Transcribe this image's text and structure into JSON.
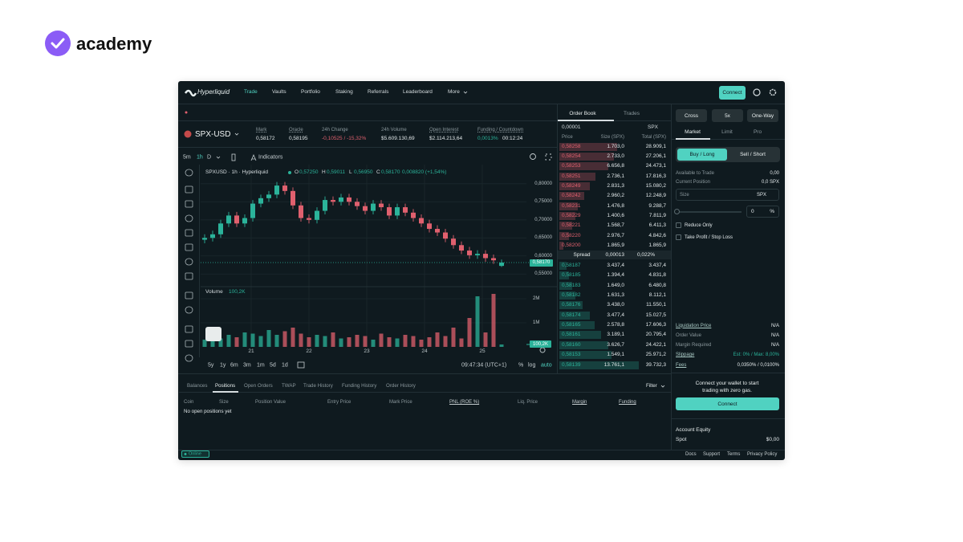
{
  "logo": {
    "text": "academy"
  },
  "nav": {
    "brand": "Hyperliquid",
    "items": [
      "Trade",
      "Vaults",
      "Portfolio",
      "Staking",
      "Referrals",
      "Leaderboard",
      "More"
    ],
    "connect": "Connect"
  },
  "market": {
    "symbol": "SPX-USD",
    "stats": [
      {
        "label": "Mark",
        "value": "0,58172"
      },
      {
        "label": "Oracle",
        "value": "0,58195"
      },
      {
        "label": "24h Change",
        "value": "-0,10525 / -15,32%"
      },
      {
        "label": "24h Volume",
        "value": "$5.609.130,69"
      },
      {
        "label": "Open Interest",
        "value": "$2.114.213,64"
      },
      {
        "label": "Funding / Countdown",
        "value": "0,0013%",
        "extra": "00:12:24"
      }
    ]
  },
  "toolbar": {
    "intervals": [
      "5m",
      "1h",
      "D"
    ],
    "indicators": "Indicators"
  },
  "chart": {
    "legend": "SPXUSD · 1h · Hyperliquid",
    "ohlc": [
      {
        "key": "O",
        "value": "0,57250"
      },
      {
        "key": "H",
        "value": "0,59011"
      },
      {
        "key": "L",
        "value": "0,56950"
      },
      {
        "key": "C",
        "value": "0,58170"
      }
    ],
    "change": "0,008820 (+1,54%)",
    "volume_label": "Volume",
    "ylim": [
      0.515,
      0.853
    ],
    "yticks": [
      {
        "value": 0.8,
        "label": "0,80000"
      },
      {
        "value": 0.75,
        "label": "0,75000"
      },
      {
        "value": 0.7,
        "label": "0,70000"
      },
      {
        "value": 0.65,
        "label": "0,65000"
      },
      {
        "value": 0.6,
        "label": "0,60000"
      },
      {
        "value": 0.55,
        "label": "0,55000"
      }
    ],
    "vlim": [
      0,
      2400000
    ],
    "vticks": [
      {
        "value": 2000000,
        "label": "2M"
      },
      {
        "value": 1000000,
        "label": "1M"
      }
    ],
    "xticks": [
      "21",
      "22",
      "23",
      "24",
      "25"
    ],
    "last_price": {
      "value": 0.5817,
      "label": "0,58170"
    },
    "last_volume": {
      "value": 100200,
      "label": "100,2K"
    },
    "candles": {
      "open": [
        0.645,
        0.65,
        0.66,
        0.69,
        0.712,
        0.69,
        0.705,
        0.745,
        0.76,
        0.77,
        0.795,
        0.78,
        0.74,
        0.705,
        0.7,
        0.725,
        0.755,
        0.75,
        0.762,
        0.75,
        0.738,
        0.725,
        0.745,
        0.735,
        0.712,
        0.735,
        0.72,
        0.705,
        0.69,
        0.675,
        0.665,
        0.648,
        0.63,
        0.615,
        0.602,
        0.606,
        0.594,
        0.5725
      ],
      "high": [
        0.66,
        0.67,
        0.7,
        0.722,
        0.722,
        0.715,
        0.755,
        0.77,
        0.78,
        0.805,
        0.805,
        0.79,
        0.75,
        0.715,
        0.735,
        0.765,
        0.765,
        0.772,
        0.772,
        0.76,
        0.748,
        0.755,
        0.755,
        0.745,
        0.745,
        0.745,
        0.73,
        0.715,
        0.7,
        0.685,
        0.675,
        0.658,
        0.64,
        0.625,
        0.616,
        0.616,
        0.604,
        0.59011
      ],
      "low": [
        0.635,
        0.64,
        0.65,
        0.68,
        0.68,
        0.68,
        0.695,
        0.735,
        0.75,
        0.76,
        0.77,
        0.73,
        0.695,
        0.69,
        0.69,
        0.715,
        0.74,
        0.74,
        0.74,
        0.728,
        0.715,
        0.715,
        0.725,
        0.702,
        0.702,
        0.71,
        0.695,
        0.68,
        0.665,
        0.655,
        0.638,
        0.62,
        0.605,
        0.592,
        0.592,
        0.584,
        0.578,
        0.5695
      ],
      "close": [
        0.65,
        0.66,
        0.69,
        0.712,
        0.69,
        0.705,
        0.745,
        0.76,
        0.77,
        0.795,
        0.78,
        0.74,
        0.705,
        0.7,
        0.725,
        0.755,
        0.75,
        0.762,
        0.75,
        0.738,
        0.725,
        0.745,
        0.735,
        0.712,
        0.735,
        0.72,
        0.705,
        0.69,
        0.675,
        0.665,
        0.648,
        0.63,
        0.615,
        0.602,
        0.606,
        0.594,
        0.588,
        0.5817
      ],
      "volume": [
        300000,
        450000,
        350000,
        500000,
        400000,
        600000,
        550000,
        450000,
        700000,
        500000,
        650000,
        800000,
        550000,
        400000,
        500000,
        450000,
        600000,
        350000,
        400000,
        500000,
        450000,
        300000,
        550000,
        400000,
        350000,
        500000,
        450000,
        300000,
        400000,
        600000,
        450000,
        800000,
        350000,
        1200000,
        2100000,
        600000,
        2200000,
        100200
      ]
    },
    "ranges": [
      "5y",
      "1y",
      "6m",
      "3m",
      "1m",
      "5d",
      "1d"
    ],
    "clock": "09:47:34 (UTC+1)",
    "options": [
      "%",
      "log",
      "auto"
    ]
  },
  "orderbook": {
    "tabs": [
      "Order Book",
      "Trades"
    ],
    "precision": "0,00001",
    "unit": "SPX",
    "headers": [
      "Price",
      "Size (SPX)",
      "Total (SPX)"
    ],
    "asks": [
      {
        "price": "0,58258",
        "size": "1.703,0",
        "total": {
          "value": 28909.1,
          "label": "28.909,1"
        }
      },
      {
        "price": "0,58254",
        "size": "2.733,0",
        "total": {
          "value": 27206.1,
          "label": "27.206,1"
        }
      },
      {
        "price": "0,58253",
        "size": "6.656,8",
        "total": {
          "value": 24473.1,
          "label": "24.473,1"
        }
      },
      {
        "price": "0,58251",
        "size": "2.736,1",
        "total": {
          "value": 17816.3,
          "label": "17.816,3"
        }
      },
      {
        "price": "0,58249",
        "size": "2.831,3",
        "total": {
          "value": 15080.2,
          "label": "15.080,2"
        }
      },
      {
        "price": "0,58242",
        "size": "2.960,2",
        "total": {
          "value": 12248.9,
          "label": "12.248,9"
        }
      },
      {
        "price": "0,58231",
        "size": "1.476,8",
        "total": {
          "value": 9288.7,
          "label": "9.288,7"
        }
      },
      {
        "price": "0,58229",
        "size": "1.400,6",
        "total": {
          "value": 7811.9,
          "label": "7.811,9"
        }
      },
      {
        "price": "0,58221",
        "size": "1.568,7",
        "total": {
          "value": 6411.3,
          "label": "6.411,3"
        }
      },
      {
        "price": "0,58220",
        "size": "2.976,7",
        "total": {
          "value": 4842.6,
          "label": "4.842,6"
        }
      },
      {
        "price": "0,58200",
        "size": "1.865,9",
        "total": {
          "value": 1865.9,
          "label": "1.865,9"
        }
      }
    ],
    "spread": {
      "label": "Spread",
      "value": "0,00013",
      "percent": "0,022%"
    },
    "bids": [
      {
        "price": "0,58187",
        "size": "3.437,4",
        "total": {
          "value": 3437.4,
          "label": "3.437,4"
        }
      },
      {
        "price": "0,58185",
        "size": "1.394,4",
        "total": {
          "value": 4831.8,
          "label": "4.831,8"
        }
      },
      {
        "price": "0,58183",
        "size": "1.649,0",
        "total": {
          "value": 6480.8,
          "label": "6.480,8"
        }
      },
      {
        "price": "0,58182",
        "size": "1.631,3",
        "total": {
          "value": 8112.1,
          "label": "8.112,1"
        }
      },
      {
        "price": "0,58176",
        "size": "3.438,0",
        "total": {
          "value": 11550.1,
          "label": "11.550,1"
        }
      },
      {
        "price": "0,58174",
        "size": "3.477,4",
        "total": {
          "value": 15027.5,
          "label": "15.027,5"
        }
      },
      {
        "price": "0,58165",
        "size": "2.578,8",
        "total": {
          "value": 17606.3,
          "label": "17.606,3"
        }
      },
      {
        "price": "0,58161",
        "size": "3.189,1",
        "total": {
          "value": 20795.4,
          "label": "20.795,4"
        }
      },
      {
        "price": "0,58160",
        "size": "3.626,7",
        "total": {
          "value": 24422.1,
          "label": "24.422,1"
        }
      },
      {
        "price": "0,58153",
        "size": "1.549,1",
        "total": {
          "value": 25971.2,
          "label": "25.971,2"
        }
      },
      {
        "price": "0,58139",
        "size": "13.761,1",
        "total": {
          "value": 39732.3,
          "label": "39.732,3"
        }
      }
    ]
  },
  "trade": {
    "mode_buttons": [
      "Cross",
      "5x",
      "One-Way"
    ],
    "order_tabs": [
      "Market",
      "Limit",
      "Pro"
    ],
    "sides": [
      "Buy / Long",
      "Sell / Short"
    ],
    "info": [
      {
        "label": "Available to Trade",
        "value": "0,00"
      },
      {
        "label": "Current Position",
        "value": "0,0 SPX"
      }
    ],
    "size": {
      "label": "Size",
      "unit": "SPX",
      "percent": "0",
      "percent_unit": "%"
    },
    "checkboxes": [
      "Reduce Only",
      "Take Profit / Stop Loss"
    ],
    "summary": [
      {
        "label": "Liquidation Price",
        "value": "N/A"
      },
      {
        "label": "Order Value",
        "value": "N/A"
      },
      {
        "label": "Margin Required",
        "value": "N/A"
      },
      {
        "label": "Slippage",
        "value": "Est: 0% / Max: 8,00%"
      },
      {
        "label": "Fees",
        "value": "0,0350% / 0,0100%"
      }
    ],
    "connect_note": [
      "Connect your wallet to start",
      "trading with zero gas."
    ],
    "connect": "Connect",
    "equity": {
      "title": "Account Equity",
      "rows": [
        {
          "label": "Spot",
          "value": "$0,00"
        }
      ]
    }
  },
  "positions": {
    "tabs": [
      "Balances",
      "Positions",
      "Open Orders",
      "TWAP",
      "Trade History",
      "Funding History",
      "Order History"
    ],
    "filter": "Filter",
    "headers": [
      "Coin",
      "Size",
      "Position Value",
      "Entry Price",
      "Mark Price",
      "PNL (ROE %)",
      "Liq. Price",
      "Margin",
      "Funding"
    ],
    "empty": "No open positions yet"
  },
  "footer": {
    "status": "Online",
    "links": [
      "Docs",
      "Support",
      "Terms",
      "Privacy Policy"
    ]
  }
}
